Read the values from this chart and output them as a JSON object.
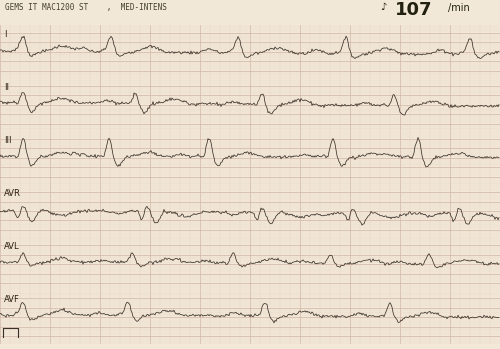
{
  "background_color": "#f2e8d8",
  "grid_major_color": "#d4b8a8",
  "grid_minor_color": "#e8d4c4",
  "ecg_color": "#3a3028",
  "header_text": "GEMS IT MAC1200 ST    ,  MED-INTENS",
  "rate_prefix": "♪",
  "rate_number": "107",
  "rate_suffix": "/min",
  "lead_labels": [
    "I",
    "II",
    "III",
    "AVR",
    "AVL",
    "AVF"
  ],
  "header_fontsize": 5.5,
  "rate_fontsize_prefix": 7,
  "rate_fontsize_number": 13,
  "rate_fontsize_suffix": 7,
  "lead_label_fontsize": 6,
  "fig_width": 5.0,
  "fig_height": 3.49,
  "dpi": 100,
  "ecg_linewidth": 0.55,
  "num_leads": 6,
  "samples": 500,
  "heart_rate": 107
}
